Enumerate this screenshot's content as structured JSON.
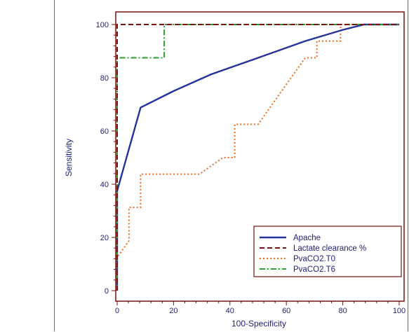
{
  "chart_data": {
    "type": "line",
    "title": "",
    "xlabel": "100-Specificity",
    "ylabel": "Sensitivity",
    "xlim": [
      0,
      100
    ],
    "ylim": [
      0,
      100
    ],
    "xticks": [
      0,
      20,
      40,
      60,
      80,
      100
    ],
    "yticks": [
      0,
      20,
      40,
      60,
      80,
      100
    ],
    "grid": false,
    "legend_position": "bottom-right",
    "series": [
      {
        "name": "Apache",
        "color": "#23339a",
        "style": "solid",
        "x": [
          0,
          0,
          8.3,
          20,
          33.3,
          50,
          66.7,
          80,
          87.5,
          100
        ],
        "y": [
          0,
          37.5,
          68.8,
          75,
          81.3,
          87.5,
          93.8,
          98,
          100,
          100
        ]
      },
      {
        "name": "Lactate clearance %",
        "color": "#7a1212",
        "style": "dashed",
        "x": [
          0,
          0,
          100
        ],
        "y": [
          0,
          100,
          100
        ]
      },
      {
        "name": "PvaCO2.T0",
        "color": "#f26b1d",
        "style": "dotted",
        "x": [
          0,
          0,
          4.2,
          4.2,
          8.3,
          8.3,
          29.2,
          37.5,
          41.7,
          41.7,
          50,
          58.3,
          66.7,
          66.7,
          70.8,
          70.8,
          75,
          75,
          79.2,
          79.2,
          83.3,
          100
        ],
        "y": [
          0,
          12.5,
          18.8,
          31.3,
          31.3,
          43.8,
          43.8,
          50,
          50,
          62.5,
          62.5,
          75,
          87.5,
          87.5,
          87.5,
          93.8,
          93.8,
          93.8,
          93.8,
          100,
          100,
          100
        ]
      },
      {
        "name": "PvaCO2.T6",
        "color": "#27a127",
        "style": "dashdot",
        "x": [
          0,
          0,
          16.7,
          16.7,
          100
        ],
        "y": [
          0,
          87.5,
          87.5,
          100,
          100
        ]
      }
    ]
  }
}
